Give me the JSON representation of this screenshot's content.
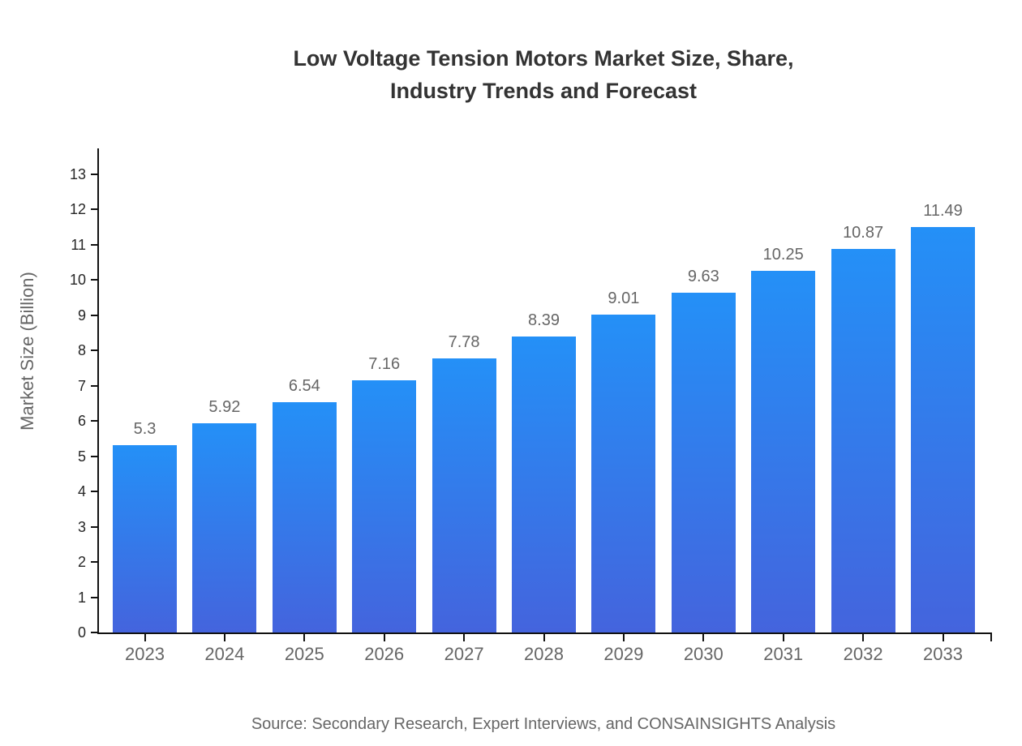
{
  "title": {
    "line1": "Low Voltage Tension Motors Market Size, Share,",
    "line2": "Industry Trends and Forecast"
  },
  "source_note": "Source: Secondary Research, Expert Interviews, and CONSAINSIGHTS Analysis",
  "chart_data": {
    "type": "bar",
    "title": "Low Voltage Tension Motors Market Size, Share, Industry Trends and Forecast",
    "categories": [
      "2023",
      "2024",
      "2025",
      "2026",
      "2027",
      "2028",
      "2029",
      "2030",
      "2031",
      "2032",
      "2033"
    ],
    "values": [
      5.3,
      5.92,
      6.54,
      7.16,
      7.78,
      8.39,
      9.01,
      9.63,
      10.25,
      10.87,
      11.49
    ],
    "value_labels": [
      "5.3",
      "5.92",
      "6.54",
      "7.16",
      "7.78",
      "8.39",
      "9.01",
      "9.63",
      "10.25",
      "10.87",
      "11.49"
    ],
    "xlabel": "",
    "ylabel": "Market Size (Billion)",
    "ylim": [
      0,
      13
    ],
    "yticks": [
      0,
      1,
      2,
      3,
      4,
      5,
      6,
      7,
      8,
      9,
      10,
      11,
      12,
      13
    ],
    "grid": false,
    "legend": "none",
    "colors": {
      "bar_gradient_top": "#2490f7",
      "bar_gradient_bottom": "#4464dd",
      "axis": "#111111",
      "tick_label": "#262626",
      "category_label": "#666666",
      "value_label": "#666666",
      "title_text": "#333333"
    }
  }
}
